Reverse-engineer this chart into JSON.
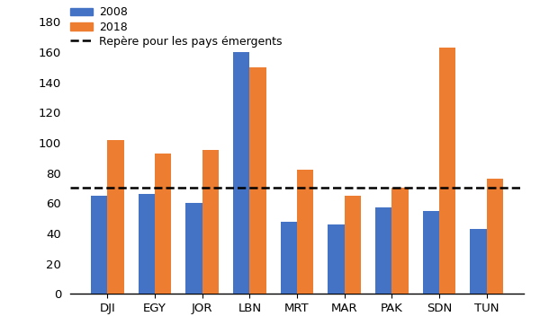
{
  "categories": [
    "DJI",
    "EGY",
    "JOR",
    "LBN",
    "MRT",
    "MAR",
    "PAK",
    "SDN",
    "TUN"
  ],
  "values_2008": [
    65,
    66,
    60,
    160,
    48,
    46,
    57,
    55,
    43
  ],
  "values_2018": [
    102,
    93,
    95,
    150,
    82,
    65,
    70,
    163,
    76
  ],
  "reference_line": 70,
  "color_2008": "#4472C4",
  "color_2018": "#ED7D31",
  "color_ref": "#000000",
  "legend_2008": "2008",
  "legend_2018": "2018",
  "legend_ref": "Repère pour les pays émergents",
  "ylim": [
    0,
    190
  ],
  "yticks": [
    0,
    20,
    40,
    60,
    80,
    100,
    120,
    140,
    160,
    180
  ],
  "bar_width": 0.35,
  "background_color": "#ffffff"
}
